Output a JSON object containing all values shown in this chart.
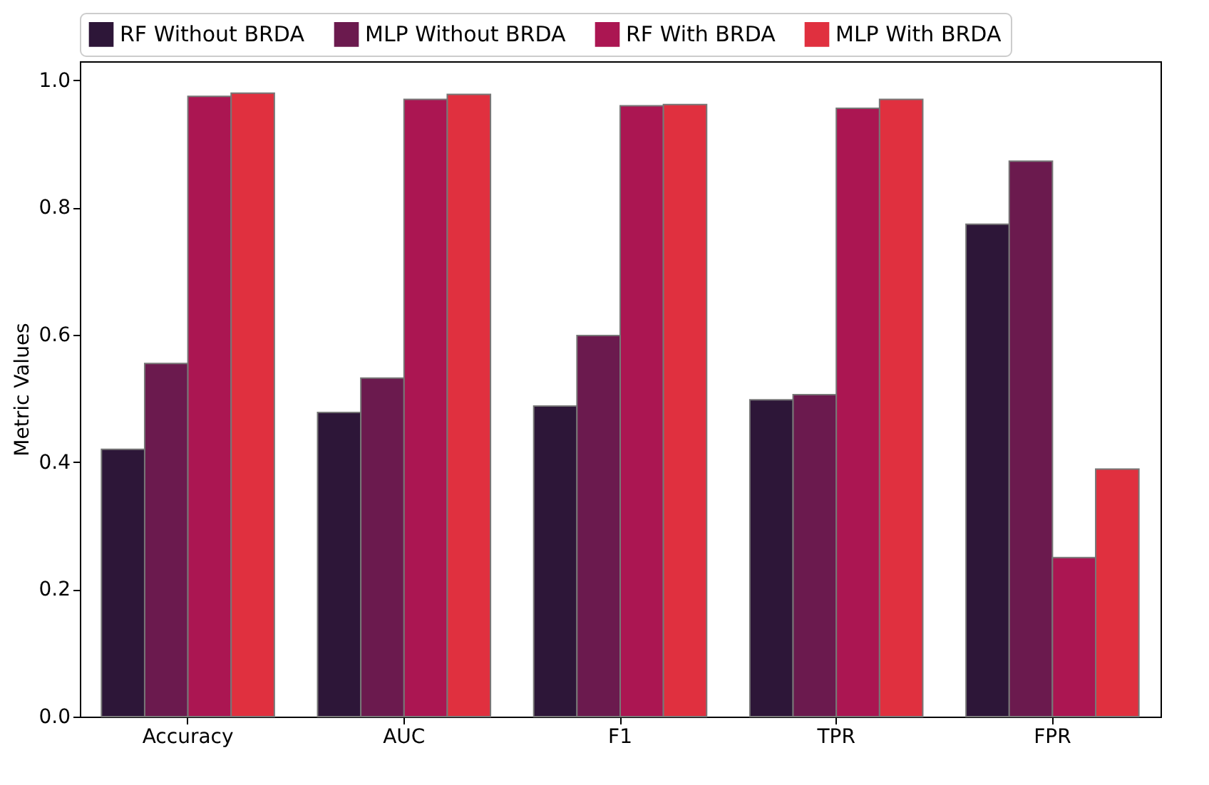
{
  "chart_data": {
    "type": "bar",
    "ylabel": "Metric Values",
    "categories": [
      "Accuracy",
      "AUC",
      "F1",
      "TPR",
      "FPR"
    ],
    "series": [
      {
        "name": "RF Without BRDA",
        "color": "#2d1638",
        "values": [
          0.42,
          0.478,
          0.488,
          0.498,
          0.774
        ]
      },
      {
        "name": "MLP Without BRDA",
        "color": "#6b1a4e",
        "values": [
          0.555,
          0.532,
          0.599,
          0.506,
          0.873
        ]
      },
      {
        "name": "RF With BRDA",
        "color": "#ab1652",
        "values": [
          0.975,
          0.97,
          0.96,
          0.956,
          0.25
        ]
      },
      {
        "name": "MLP With BRDA",
        "color": "#e0303f",
        "values": [
          0.98,
          0.978,
          0.962,
          0.97,
          0.389
        ]
      }
    ],
    "ylim": [
      0,
      1.03
    ],
    "yticks": [
      {
        "value": 0,
        "label": "0.0"
      },
      0.2,
      0.4,
      0.6,
      0.8,
      {
        "value": 1,
        "label": "1.0"
      }
    ],
    "grid": false,
    "legend": "top"
  }
}
